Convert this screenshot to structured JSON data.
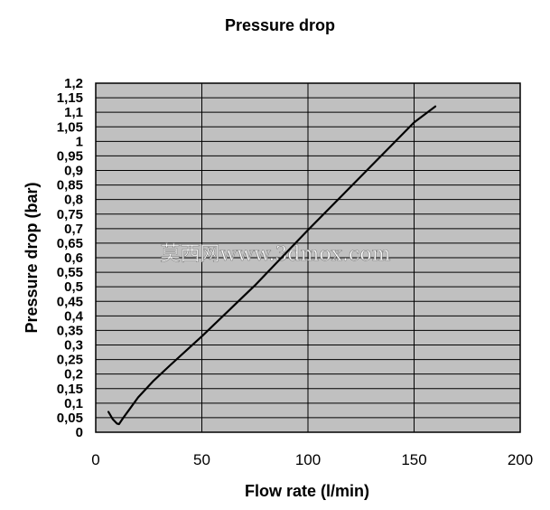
{
  "chart_data": {
    "type": "line",
    "title": "Pressure drop",
    "xlabel": "Flow rate (l/min)",
    "ylabel": "Pressure drop (bar)",
    "xlim": [
      0,
      200
    ],
    "ylim": [
      0,
      1.2
    ],
    "x_ticks": [
      0,
      50,
      100,
      150,
      200
    ],
    "x_tick_labels": [
      "0",
      "50",
      "100",
      "150",
      "200"
    ],
    "y_ticks": [
      0,
      0.05,
      0.1,
      0.15,
      0.2,
      0.25,
      0.3,
      0.35,
      0.4,
      0.45,
      0.5,
      0.55,
      0.6,
      0.65,
      0.7,
      0.75,
      0.8,
      0.85,
      0.9,
      0.95,
      1,
      1.05,
      1.1,
      1.15,
      1.2
    ],
    "y_tick_labels": [
      "0",
      "0,05",
      "0,1",
      "0,15",
      "0,2",
      "0,25",
      "0,3",
      "0,35",
      "0,4",
      "0,45",
      "0,5",
      "0,55",
      "0,6",
      "0,65",
      "0,7",
      "0,75",
      "0,8",
      "0,85",
      "0,9",
      "0,95",
      "1",
      "1,05",
      "1,1",
      "1,15",
      "1,2"
    ],
    "grid": {
      "horizontal": true,
      "vertical": true
    },
    "plot_background": "#c0c0c0",
    "line_color": "#000000",
    "grid_color": "#000000",
    "series": [
      {
        "x": [
          6,
          8,
          10,
          11,
          13,
          16,
          20,
          27,
          35,
          50,
          75,
          100,
          125,
          150,
          160
        ],
        "y": [
          0.07,
          0.045,
          0.03,
          0.028,
          0.05,
          0.08,
          0.12,
          0.175,
          0.23,
          0.33,
          0.505,
          0.695,
          0.88,
          1.065,
          1.12
        ]
      }
    ],
    "watermark": "莫西网www.3dmox.com"
  }
}
